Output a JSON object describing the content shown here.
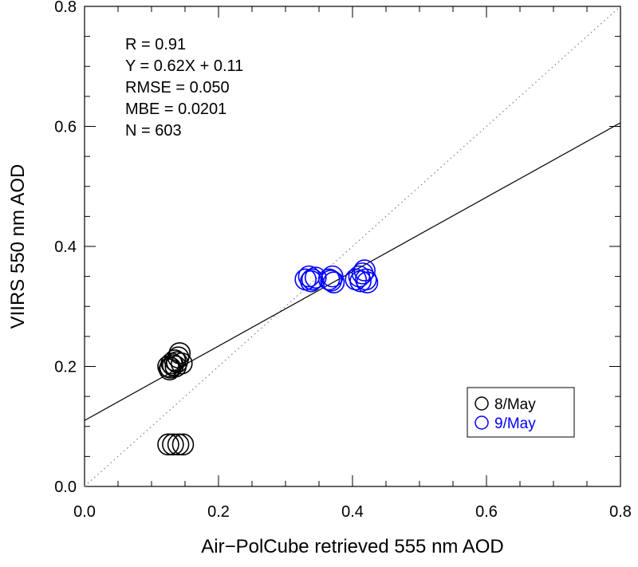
{
  "chart_data": {
    "type": "scatter",
    "xlabel": "Air−PolCube retrieved 555 nm AOD",
    "ylabel": "VIIRS 550 nm AOD",
    "xlim": [
      0.0,
      0.8
    ],
    "ylim": [
      0.0,
      0.8
    ],
    "xticks": [
      "0.0",
      "0.2",
      "0.4",
      "0.6",
      "0.8"
    ],
    "yticks": [
      "0.0",
      "0.2",
      "0.4",
      "0.6",
      "0.8"
    ],
    "grid": false,
    "legend_position": "bottom-right",
    "stats": [
      "R = 0.91",
      "Y = 0.62X + 0.11",
      "RMSE =  0.050",
      "MBE = 0.0201",
      "N =    603"
    ],
    "fit_line": {
      "slope": 0.62,
      "intercept": 0.11,
      "style": "solid"
    },
    "one_to_one_line": {
      "style": "dotted"
    },
    "series": [
      {
        "name": "8/May",
        "color": "#000000",
        "marker": "open-circle",
        "points": [
          [
            0.125,
            0.2
          ],
          [
            0.13,
            0.205
          ],
          [
            0.128,
            0.198
          ],
          [
            0.135,
            0.21
          ],
          [
            0.14,
            0.215
          ],
          [
            0.132,
            0.202
          ],
          [
            0.138,
            0.207
          ],
          [
            0.145,
            0.205
          ],
          [
            0.142,
            0.222
          ],
          [
            0.127,
            0.195
          ],
          [
            0.136,
            0.2
          ],
          [
            0.125,
            0.07
          ],
          [
            0.132,
            0.07
          ],
          [
            0.14,
            0.07
          ],
          [
            0.147,
            0.07
          ]
        ]
      },
      {
        "name": "9/May",
        "color": "#0000ff",
        "marker": "open-circle",
        "points": [
          [
            0.33,
            0.345
          ],
          [
            0.335,
            0.35
          ],
          [
            0.34,
            0.345
          ],
          [
            0.345,
            0.348
          ],
          [
            0.338,
            0.342
          ],
          [
            0.365,
            0.345
          ],
          [
            0.37,
            0.35
          ],
          [
            0.372,
            0.34
          ],
          [
            0.368,
            0.343
          ],
          [
            0.405,
            0.345
          ],
          [
            0.41,
            0.35
          ],
          [
            0.415,
            0.355
          ],
          [
            0.42,
            0.345
          ],
          [
            0.418,
            0.36
          ],
          [
            0.422,
            0.34
          ],
          [
            0.412,
            0.342
          ]
        ]
      }
    ]
  }
}
